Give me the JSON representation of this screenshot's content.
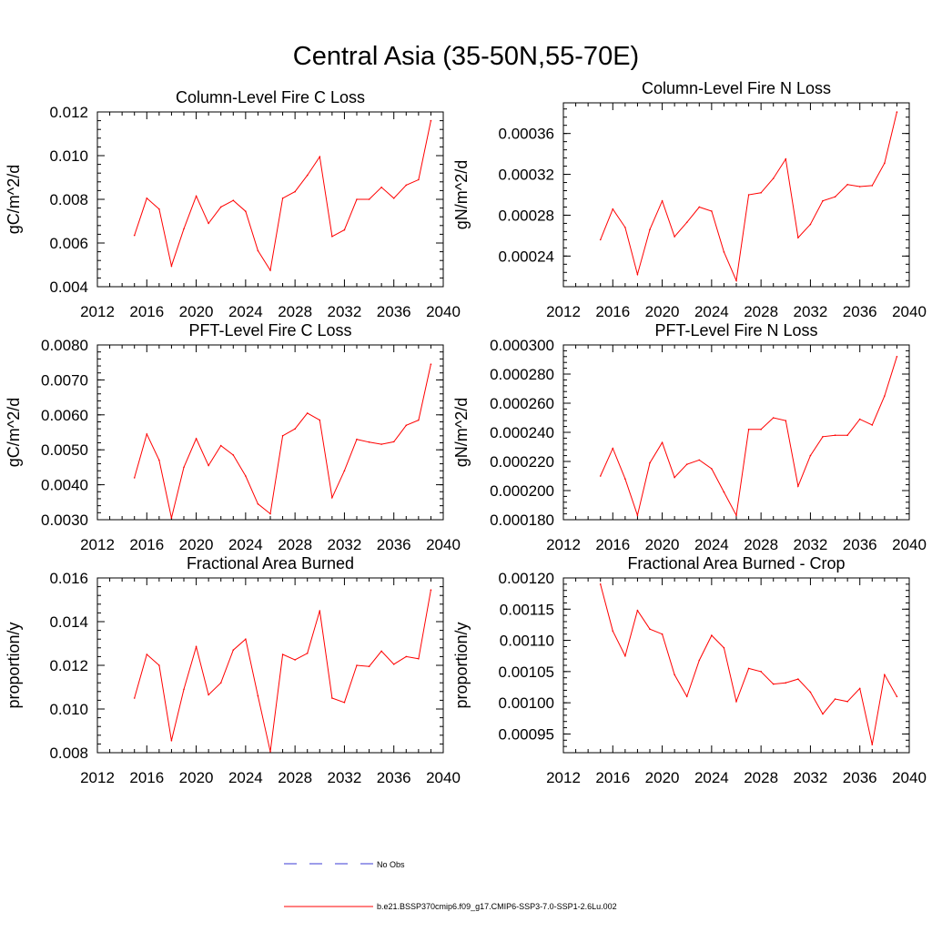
{
  "title": "Central Asia (35-50N,55-70E)",
  "colors": {
    "series": "#ff0000",
    "obs": "#3b3bd6",
    "axis": "#000000"
  },
  "legend": {
    "obs_label": "No Obs",
    "model_label": "b.e21.BSSP370cmip6.f09_g17.CMIP6-SSP3-7.0-SSP1-2.6Lu.002"
  },
  "chart_data": [
    {
      "type": "line",
      "title": "Column-Level Fire C Loss",
      "ylabel": "gC/m^2/d",
      "xlim": [
        2012,
        2040
      ],
      "xticks": [
        "2012",
        "2016",
        "2020",
        "2024",
        "2028",
        "2032",
        "2036",
        "2040"
      ],
      "ylim": [
        0.004,
        0.012
      ],
      "yticks": [
        "0.004",
        "0.006",
        "0.008",
        "0.010",
        "0.012"
      ],
      "x": [
        2015,
        2016,
        2017,
        2018,
        2019,
        2020,
        2021,
        2022,
        2023,
        2024,
        2025,
        2026,
        2027,
        2028,
        2029,
        2030,
        2031,
        2032,
        2033,
        2034,
        2035,
        2036,
        2037,
        2038,
        2039
      ],
      "series": [
        {
          "values": [
            0.00635,
            0.00805,
            0.00755,
            0.00495,
            0.00665,
            0.00815,
            0.0069,
            0.00765,
            0.00795,
            0.00745,
            0.00565,
            0.00475,
            0.00805,
            0.00835,
            0.0091,
            0.00995,
            0.0063,
            0.0066,
            0.008,
            0.008,
            0.00855,
            0.00805,
            0.00865,
            0.0089,
            0.0116
          ]
        }
      ]
    },
    {
      "type": "line",
      "title": "Column-Level Fire N Loss",
      "ylabel": "gN/m^2/d",
      "xlim": [
        2012,
        2040
      ],
      "xticks": [
        "2012",
        "2016",
        "2020",
        "2024",
        "2028",
        "2032",
        "2036",
        "2040"
      ],
      "ylim": [
        0.00021,
        0.00039
      ],
      "yticks": [
        "0.00024",
        "0.00028",
        "0.00032",
        "0.00036"
      ],
      "x": [
        2015,
        2016,
        2017,
        2018,
        2019,
        2020,
        2021,
        2022,
        2023,
        2024,
        2025,
        2026,
        2027,
        2028,
        2029,
        2030,
        2031,
        2032,
        2033,
        2034,
        2035,
        2036,
        2037,
        2038,
        2039
      ],
      "series": [
        {
          "values": [
            0.000256,
            0.000286,
            0.000268,
            0.000222,
            0.000266,
            0.000294,
            0.000259,
            0.000273,
            0.000288,
            0.000284,
            0.000244,
            0.000216,
            0.0003,
            0.000302,
            0.000316,
            0.000335,
            0.000258,
            0.000271,
            0.000294,
            0.000298,
            0.00031,
            0.000308,
            0.000309,
            0.000331,
            0.000381
          ]
        }
      ]
    },
    {
      "type": "line",
      "title": "PFT-Level Fire C Loss",
      "ylabel": "gC/m^2/d",
      "xlim": [
        2012,
        2040
      ],
      "xticks": [
        "2012",
        "2016",
        "2020",
        "2024",
        "2028",
        "2032",
        "2036",
        "2040"
      ],
      "ylim": [
        0.003,
        0.008
      ],
      "yticks": [
        "0.0030",
        "0.0040",
        "0.0050",
        "0.0060",
        "0.0070",
        "0.0080"
      ],
      "x": [
        2015,
        2016,
        2017,
        2018,
        2019,
        2020,
        2021,
        2022,
        2023,
        2024,
        2025,
        2026,
        2027,
        2028,
        2029,
        2030,
        2031,
        2032,
        2033,
        2034,
        2035,
        2036,
        2037,
        2038,
        2039
      ],
      "series": [
        {
          "values": [
            0.0042,
            0.00545,
            0.0047,
            0.00305,
            0.0045,
            0.00532,
            0.00455,
            0.00512,
            0.00485,
            0.00425,
            0.00345,
            0.00317,
            0.0054,
            0.0056,
            0.00605,
            0.00585,
            0.00363,
            0.0044,
            0.0053,
            0.00522,
            0.00516,
            0.00523,
            0.0057,
            0.00585,
            0.00745
          ]
        }
      ]
    },
    {
      "type": "line",
      "title": "PFT-Level Fire N Loss",
      "ylabel": "gN/m^2/d",
      "xlim": [
        2012,
        2040
      ],
      "xticks": [
        "2012",
        "2016",
        "2020",
        "2024",
        "2028",
        "2032",
        "2036",
        "2040"
      ],
      "ylim": [
        0.00018,
        0.0003
      ],
      "yticks": [
        "0.000180",
        "0.000200",
        "0.000220",
        "0.000240",
        "0.000260",
        "0.000280",
        "0.000300"
      ],
      "x": [
        2015,
        2016,
        2017,
        2018,
        2019,
        2020,
        2021,
        2022,
        2023,
        2024,
        2025,
        2026,
        2027,
        2028,
        2029,
        2030,
        2031,
        2032,
        2033,
        2034,
        2035,
        2036,
        2037,
        2038,
        2039
      ],
      "series": [
        {
          "values": [
            0.00021,
            0.000229,
            0.000208,
            0.000183,
            0.000219,
            0.000233,
            0.000209,
            0.000218,
            0.000221,
            0.000215,
            0.000199,
            0.000183,
            0.000242,
            0.000242,
            0.00025,
            0.000248,
            0.000203,
            0.000224,
            0.000237,
            0.000238,
            0.000238,
            0.000249,
            0.000245,
            0.000265,
            0.000292
          ]
        }
      ]
    },
    {
      "type": "line",
      "title": "Fractional Area Burned",
      "ylabel": "proportion/y",
      "xlim": [
        2012,
        2040
      ],
      "xticks": [
        "2012",
        "2016",
        "2020",
        "2024",
        "2028",
        "2032",
        "2036",
        "2040"
      ],
      "ylim": [
        0.008,
        0.016
      ],
      "yticks": [
        "0.008",
        "0.010",
        "0.012",
        "0.014",
        "0.016"
      ],
      "x": [
        2015,
        2016,
        2017,
        2018,
        2019,
        2020,
        2021,
        2022,
        2023,
        2024,
        2025,
        2026,
        2027,
        2028,
        2029,
        2030,
        2031,
        2032,
        2033,
        2034,
        2035,
        2036,
        2037,
        2038,
        2039
      ],
      "series": [
        {
          "values": [
            0.0105,
            0.0125,
            0.012,
            0.00855,
            0.0109,
            0.01285,
            0.01065,
            0.0112,
            0.0127,
            0.0132,
            0.0106,
            0.00805,
            0.0125,
            0.01225,
            0.01255,
            0.0145,
            0.0105,
            0.0103,
            0.012,
            0.01195,
            0.01265,
            0.01205,
            0.0124,
            0.0123,
            0.01545
          ]
        }
      ]
    },
    {
      "type": "line",
      "title": "Fractional Area Burned - Crop",
      "ylabel": "proportion/y",
      "xlim": [
        2012,
        2040
      ],
      "xticks": [
        "2012",
        "2016",
        "2020",
        "2024",
        "2028",
        "2032",
        "2036",
        "2040"
      ],
      "ylim": [
        0.00092,
        0.0012
      ],
      "yticks": [
        "0.00095",
        "0.00100",
        "0.00105",
        "0.00110",
        "0.00115",
        "0.00120"
      ],
      "x": [
        2015,
        2016,
        2017,
        2018,
        2019,
        2020,
        2021,
        2022,
        2023,
        2024,
        2025,
        2026,
        2027,
        2028,
        2029,
        2030,
        2031,
        2032,
        2033,
        2034,
        2035,
        2036,
        2037,
        2038,
        2039
      ],
      "series": [
        {
          "values": [
            0.00119,
            0.001115,
            0.001075,
            0.001148,
            0.001118,
            0.00111,
            0.001045,
            0.00101,
            0.001068,
            0.001108,
            0.001088,
            0.001002,
            0.001055,
            0.00105,
            0.00103,
            0.001032,
            0.001038,
            0.001017,
            0.000982,
            0.001006,
            0.001002,
            0.001023,
            0.000933,
            0.001045,
            0.00101
          ]
        }
      ]
    }
  ]
}
